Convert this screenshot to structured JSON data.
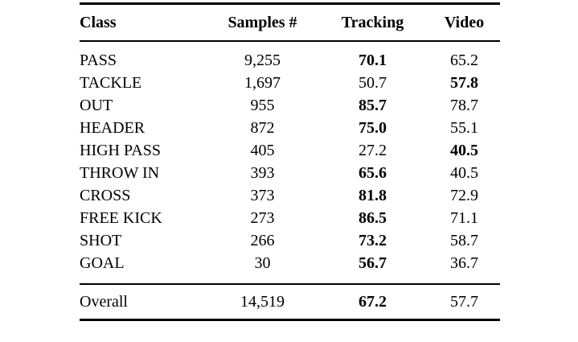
{
  "colors": {
    "text": "#000000",
    "background": "#ffffff"
  },
  "table": {
    "columns": [
      "Class",
      "Samples #",
      "Tracking",
      "Video"
    ],
    "rows": [
      {
        "class": "PASS",
        "samples": "9,255",
        "tracking": "70.1",
        "tracking_bold": true,
        "video": "65.2",
        "video_bold": false
      },
      {
        "class": "TACKLE",
        "samples": "1,697",
        "tracking": "50.7",
        "tracking_bold": false,
        "video": "57.8",
        "video_bold": true
      },
      {
        "class": "OUT",
        "samples": "955",
        "tracking": "85.7",
        "tracking_bold": true,
        "video": "78.7",
        "video_bold": false
      },
      {
        "class": "HEADER",
        "samples": "872",
        "tracking": "75.0",
        "tracking_bold": true,
        "video": "55.1",
        "video_bold": false
      },
      {
        "class": "HIGH PASS",
        "samples": "405",
        "tracking": "27.2",
        "tracking_bold": false,
        "video": "40.5",
        "video_bold": true
      },
      {
        "class": "THROW IN",
        "samples": "393",
        "tracking": "65.6",
        "tracking_bold": true,
        "video": "40.5",
        "video_bold": false
      },
      {
        "class": "CROSS",
        "samples": "373",
        "tracking": "81.8",
        "tracking_bold": true,
        "video": "72.9",
        "video_bold": false
      },
      {
        "class": "FREE KICK",
        "samples": "273",
        "tracking": "86.5",
        "tracking_bold": true,
        "video": "71.1",
        "video_bold": false
      },
      {
        "class": "SHOT",
        "samples": "266",
        "tracking": "73.2",
        "tracking_bold": true,
        "video": "58.7",
        "video_bold": false
      },
      {
        "class": "GOAL",
        "samples": "30",
        "tracking": "56.7",
        "tracking_bold": true,
        "video": "36.7",
        "video_bold": false
      }
    ],
    "overall": {
      "class": "Overall",
      "samples": "14,519",
      "tracking": "67.2",
      "tracking_bold": true,
      "video": "57.7",
      "video_bold": false
    }
  }
}
